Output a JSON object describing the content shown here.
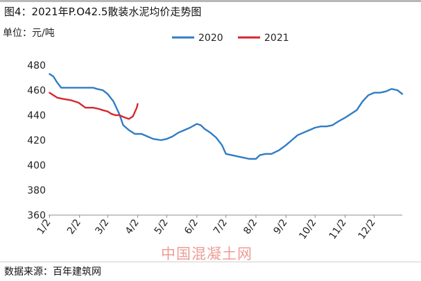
{
  "title": "图4：2021年P.O42.5散装水泥均价走势图",
  "source": "数据来源：百年建筑网",
  "watermark": "中国混凝土网",
  "chart_data": {
    "type": "line",
    "title": "图4：2021年P.O42.5散装水泥均价走势图",
    "ylabel": "单位：元/吨",
    "xlabel": "",
    "ylim": [
      360,
      480
    ],
    "yticks": [
      360,
      380,
      400,
      420,
      440,
      460,
      480
    ],
    "xlim": [
      "01-01",
      "12-31"
    ],
    "xticks": [
      {
        "label": "1/2",
        "date": "01-02"
      },
      {
        "label": "2/2",
        "date": "02-02"
      },
      {
        "label": "3/2",
        "date": "03-02"
      },
      {
        "label": "4/2",
        "date": "04-02"
      },
      {
        "label": "5/2",
        "date": "05-02"
      },
      {
        "label": "6/2",
        "date": "06-02"
      },
      {
        "label": "7/2",
        "date": "07-02"
      },
      {
        "label": "8/2",
        "date": "08-02"
      },
      {
        "label": "9/2",
        "date": "09-02"
      },
      {
        "label": "10/2",
        "date": "10-02"
      },
      {
        "label": "11/2",
        "date": "11-02"
      },
      {
        "label": "12/2",
        "date": "12-02"
      }
    ],
    "grid": false,
    "legend_position": "top-center",
    "series": [
      {
        "name": "2020",
        "color": "#2f7cc4",
        "points": [
          [
            "01-02",
            473
          ],
          [
            "01-06",
            471
          ],
          [
            "01-10",
            466
          ],
          [
            "01-14",
            462
          ],
          [
            "01-22",
            462
          ],
          [
            "02-01",
            462
          ],
          [
            "02-10",
            462
          ],
          [
            "02-16",
            462
          ],
          [
            "02-20",
            461
          ],
          [
            "02-26",
            460
          ],
          [
            "03-02",
            457
          ],
          [
            "03-08",
            451
          ],
          [
            "03-14",
            441
          ],
          [
            "03-18",
            432
          ],
          [
            "03-24",
            428
          ],
          [
            "03-30",
            425
          ],
          [
            "04-06",
            425
          ],
          [
            "04-12",
            423
          ],
          [
            "04-18",
            421
          ],
          [
            "04-26",
            420
          ],
          [
            "05-02",
            421
          ],
          [
            "05-08",
            423
          ],
          [
            "05-14",
            426
          ],
          [
            "05-20",
            428
          ],
          [
            "05-26",
            430
          ],
          [
            "06-02",
            433
          ],
          [
            "06-06",
            432
          ],
          [
            "06-10",
            429
          ],
          [
            "06-16",
            426
          ],
          [
            "06-22",
            422
          ],
          [
            "06-28",
            416
          ],
          [
            "07-02",
            409
          ],
          [
            "07-08",
            408
          ],
          [
            "07-14",
            407
          ],
          [
            "07-20",
            406
          ],
          [
            "07-26",
            405
          ],
          [
            "08-02",
            405
          ],
          [
            "08-06",
            408
          ],
          [
            "08-12",
            409
          ],
          [
            "08-18",
            409
          ],
          [
            "08-26",
            412
          ],
          [
            "09-02",
            416
          ],
          [
            "09-08",
            420
          ],
          [
            "09-14",
            424
          ],
          [
            "09-20",
            426
          ],
          [
            "09-26",
            428
          ],
          [
            "10-02",
            430
          ],
          [
            "10-08",
            431
          ],
          [
            "10-14",
            431
          ],
          [
            "10-20",
            432
          ],
          [
            "10-26",
            435
          ],
          [
            "11-02",
            438
          ],
          [
            "11-08",
            441
          ],
          [
            "11-14",
            444
          ],
          [
            "11-20",
            451
          ],
          [
            "11-26",
            456
          ],
          [
            "12-02",
            458
          ],
          [
            "12-08",
            458
          ],
          [
            "12-14",
            459
          ],
          [
            "12-20",
            461
          ],
          [
            "12-26",
            460
          ],
          [
            "12-31",
            457
          ]
        ]
      },
      {
        "name": "2021",
        "color": "#d7262c",
        "points": [
          [
            "01-02",
            458
          ],
          [
            "01-06",
            456
          ],
          [
            "01-10",
            454
          ],
          [
            "01-16",
            453
          ],
          [
            "01-24",
            452
          ],
          [
            "02-01",
            450
          ],
          [
            "02-08",
            446
          ],
          [
            "02-16",
            446
          ],
          [
            "02-22",
            445
          ],
          [
            "02-26",
            444
          ],
          [
            "03-02",
            443
          ],
          [
            "03-06",
            441
          ],
          [
            "03-10",
            440
          ],
          [
            "03-14",
            440
          ],
          [
            "03-20",
            438
          ],
          [
            "03-24",
            437
          ],
          [
            "03-28",
            439
          ],
          [
            "04-01",
            446
          ],
          [
            "04-02",
            449
          ]
        ]
      }
    ]
  }
}
